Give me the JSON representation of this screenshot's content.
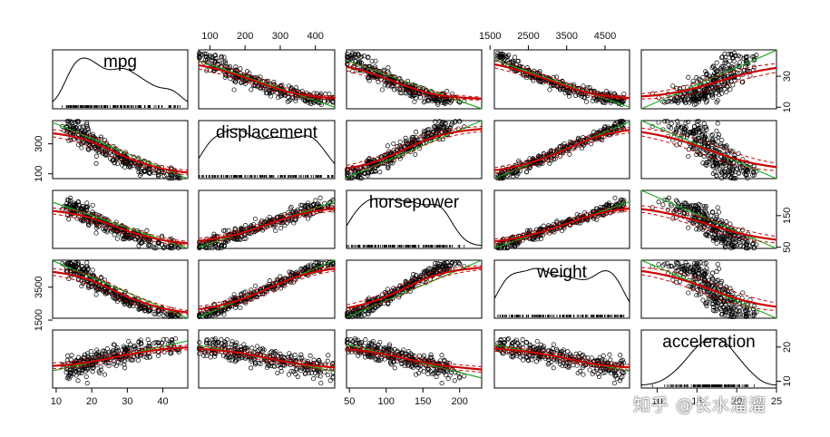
{
  "chart_data": {
    "type": "scatter",
    "variables": [
      "mpg",
      "displacement",
      "horsepower",
      "weight",
      "acceleration"
    ],
    "ranges": {
      "mpg": [
        9,
        47
      ],
      "displacement": [
        68,
        455
      ],
      "horsepower": [
        46,
        230
      ],
      "weight": [
        1613,
        5140
      ],
      "acceleration": [
        8,
        25
      ]
    },
    "axis_ticks": {
      "top": [
        {
          "var": "displacement",
          "ticks": [
            100,
            200,
            300,
            400
          ]
        },
        {
          "var": "weight",
          "ticks": [
            1500,
            2500,
            3500,
            4500
          ]
        }
      ],
      "right": [
        {
          "var": "mpg",
          "ticks": [
            10,
            30
          ]
        },
        {
          "var": "horsepower",
          "ticks": [
            50,
            150
          ]
        },
        {
          "var": "acceleration",
          "ticks": [
            10,
            20
          ]
        }
      ],
      "left": [
        {
          "var": "displacement",
          "ticks": [
            100,
            300
          ]
        },
        {
          "var": "weight",
          "ticks": [
            1500,
            3500
          ]
        }
      ],
      "bottom": [
        {
          "var": "mpg",
          "ticks": [
            10,
            20,
            30,
            40
          ]
        },
        {
          "var": "horsepower",
          "ticks": [
            50,
            100,
            150,
            200
          ]
        },
        {
          "var": "acceleration",
          "ticks": [
            10,
            15,
            20,
            25
          ]
        }
      ]
    },
    "series": [
      {
        "name": "points",
        "color": "#000000"
      },
      {
        "name": "linear fit",
        "color": "#22aa22"
      },
      {
        "name": "smoother",
        "color": "#cc0000"
      }
    ]
  },
  "watermark": "知乎 @长水溜溜"
}
